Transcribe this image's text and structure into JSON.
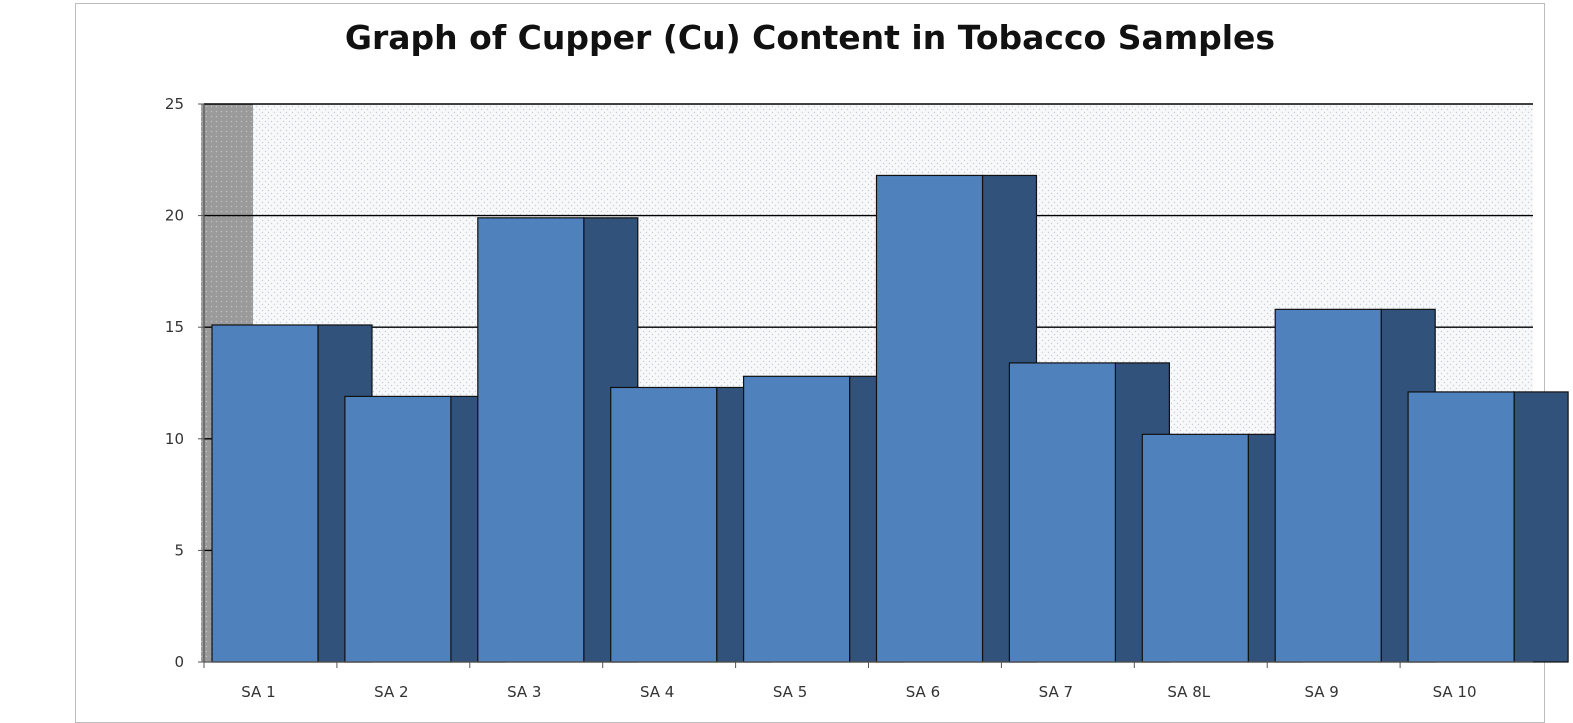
{
  "chart_data": {
    "type": "bar",
    "title": "Graph of Cupper (Cu) Content in Tobacco Samples",
    "categories": [
      "SA 1",
      "SA 2",
      "SA 3",
      "SA 4",
      "SA 5",
      "SA 6",
      "SA 7",
      "SA 8L",
      "SA 9",
      "SA 10"
    ],
    "values": [
      15.1,
      11.9,
      19.9,
      12.3,
      12.8,
      21.8,
      13.4,
      10.2,
      15.8,
      12.1
    ],
    "ylim": [
      0,
      25
    ],
    "yticks": [
      0,
      5,
      10,
      15,
      20,
      25
    ],
    "grid": true,
    "legend": "none",
    "style": "3d",
    "colors": {
      "bar_front": "#4f81bd",
      "bar_side": "#31527a",
      "wall": "#f3f6f8",
      "side_wall": "#9a9a9a",
      "gridline": "#000000"
    }
  }
}
